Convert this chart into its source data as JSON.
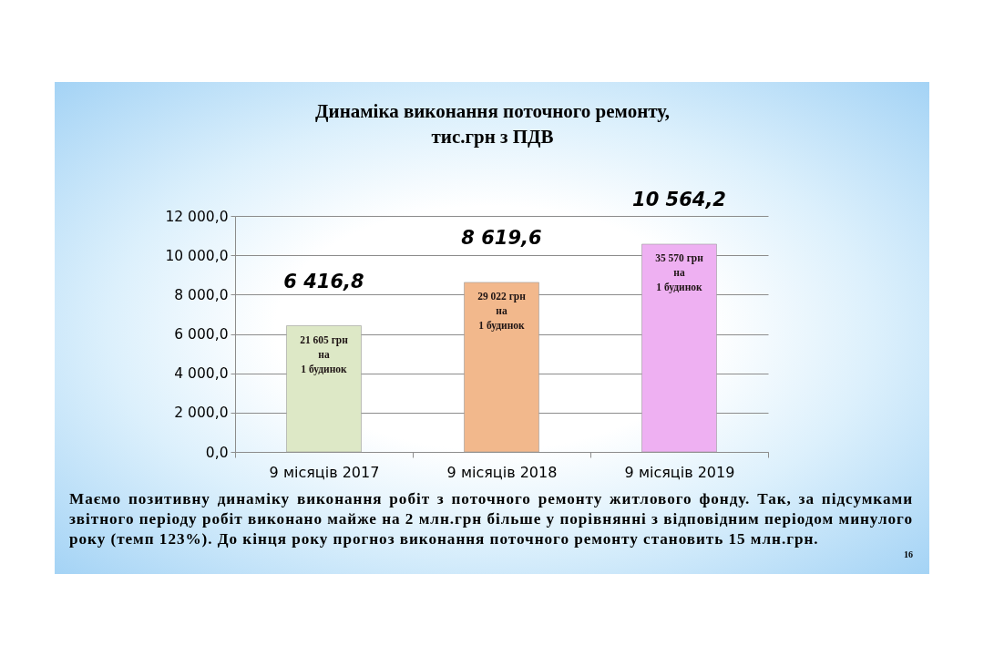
{
  "chart_data": {
    "type": "bar",
    "title": "Динаміка виконання поточного ремонту,\nтис.грн з ПДВ",
    "categories": [
      "9 місяців 2017",
      "9 місяців 2018",
      "9 місяців 2019"
    ],
    "values": [
      6416.8,
      8619.6,
      10564.2
    ],
    "colors": [
      "#dde8c6",
      "#f2b88c",
      "#eeb0f2"
    ],
    "value_labels": [
      "6 416,8",
      "8 619,6",
      "10 564,2"
    ],
    "ylim": [
      0,
      12000
    ],
    "yticks": [
      {
        "value": 0,
        "label": "0,0"
      },
      {
        "value": 2000,
        "label": "2 000,0"
      },
      {
        "value": 4000,
        "label": "4 000,0"
      },
      {
        "value": 6000,
        "label": "6 000,0"
      },
      {
        "value": 8000,
        "label": "8 000,0"
      },
      {
        "value": 10000,
        "label": "10 000,0"
      },
      {
        "value": 12000,
        "label": "12 000,0"
      }
    ],
    "grid": "y",
    "annotations": [
      {
        "text": "21 605 грн\nна\n1 будинок",
        "x": "9 місяців 2017",
        "y": 6416.8
      },
      {
        "text": "29 022 грн\nна\n1 будинок",
        "x": "9 місяців 2018",
        "y": 8619.6
      },
      {
        "text": "35 570 грн\nна\n1 будинок",
        "x": "9 місяців 2019",
        "y": 10564.2
      },
      "Маємо позитивну динаміку виконання робіт з поточного ремонту житлового фонду. Так, за підсумками звітного періоду робіт виконано майже на 2 млн.грн більше у порівнянні з відповідним періодом минулого року (темп 123%). До кінця року прогноз виконання поточного ремонту становить 15 млн.грн.",
      "16"
    ]
  }
}
